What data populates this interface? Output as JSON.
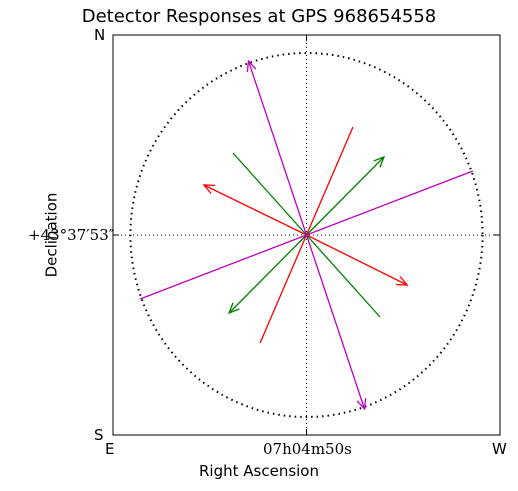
{
  "chart_data": {
    "type": "vector-field",
    "title": "Detector Responses at GPS 968654558",
    "xlabel": "Right Ascension",
    "ylabel": "Declination",
    "xtick": "07h04m50s",
    "ytick": "+43°37′53″",
    "corners": {
      "top_left": "N",
      "bottom_left": "S",
      "bottom_left_x": "E",
      "bottom_right": "W"
    },
    "xlim": [
      -1,
      1
    ],
    "ylim": [
      -1,
      1
    ],
    "circle_radius": 0.91,
    "grid": "center crosshair only",
    "legend": "none",
    "series": [
      {
        "color": "#ff0000",
        "arrows": [
          {
            "x": 0.52,
            "y": -0.25,
            "head": true
          },
          {
            "x": -0.53,
            "y": 0.25,
            "head": true
          },
          {
            "x": 0.24,
            "y": 0.54,
            "head": false
          },
          {
            "x": -0.24,
            "y": -0.54,
            "head": false
          }
        ]
      },
      {
        "color": "#008000",
        "arrows": [
          {
            "x": 0.4,
            "y": 0.39,
            "head": true
          },
          {
            "x": -0.4,
            "y": -0.39,
            "head": true
          },
          {
            "x": -0.38,
            "y": 0.41,
            "head": false
          },
          {
            "x": 0.38,
            "y": -0.41,
            "head": false
          }
        ]
      },
      {
        "color": "#c000c0",
        "arrows": [
          {
            "x": -0.3,
            "y": 0.87,
            "head": true
          },
          {
            "x": 0.3,
            "y": -0.87,
            "head": true
          },
          {
            "x": 0.86,
            "y": 0.32,
            "head": false
          },
          {
            "x": -0.86,
            "y": -0.32,
            "head": false
          }
        ]
      }
    ]
  }
}
